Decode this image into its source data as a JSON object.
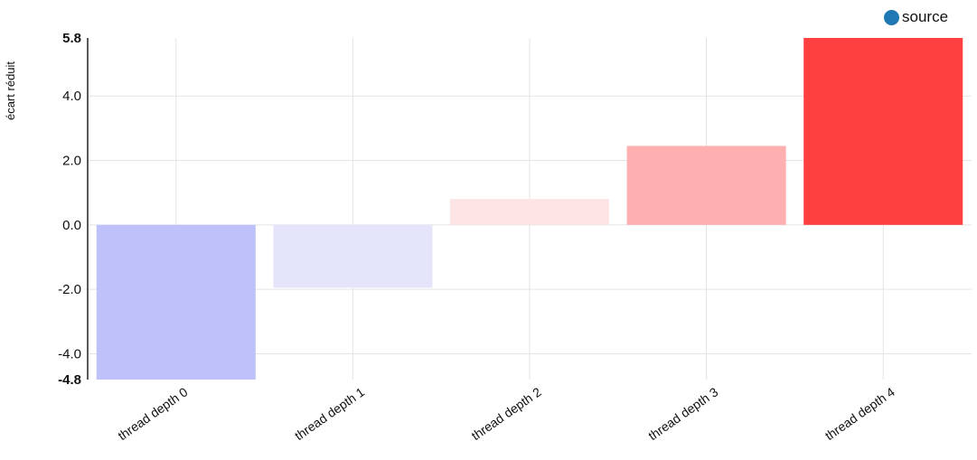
{
  "chart_data": {
    "type": "bar",
    "title": "",
    "xlabel": "",
    "ylabel": "écart réduit",
    "categories": [
      "thread depth 0",
      "thread depth 1",
      "thread depth 2",
      "thread depth 3",
      "thread depth 4"
    ],
    "series": [
      {
        "name": "source",
        "values": [
          -4.8,
          -1.95,
          0.8,
          2.45,
          5.8
        ]
      }
    ],
    "bar_colors": [
      "#bfc1fb",
      "#e4e5fb",
      "#fde4e4",
      "#feafb0",
      "#fe4040"
    ],
    "ylim": [
      -4.8,
      5.8
    ],
    "yticks": [
      -4.0,
      -2.0,
      0.0,
      2.0,
      4.0
    ],
    "ytick_labels": [
      "-4.0",
      "-2.0",
      "0.0",
      "2.0",
      "4.0"
    ],
    "ybound_labels": [
      "-4.8",
      "5.8"
    ],
    "grid": true,
    "legend_position": "top-right",
    "legend_color": "#1f77b4"
  }
}
